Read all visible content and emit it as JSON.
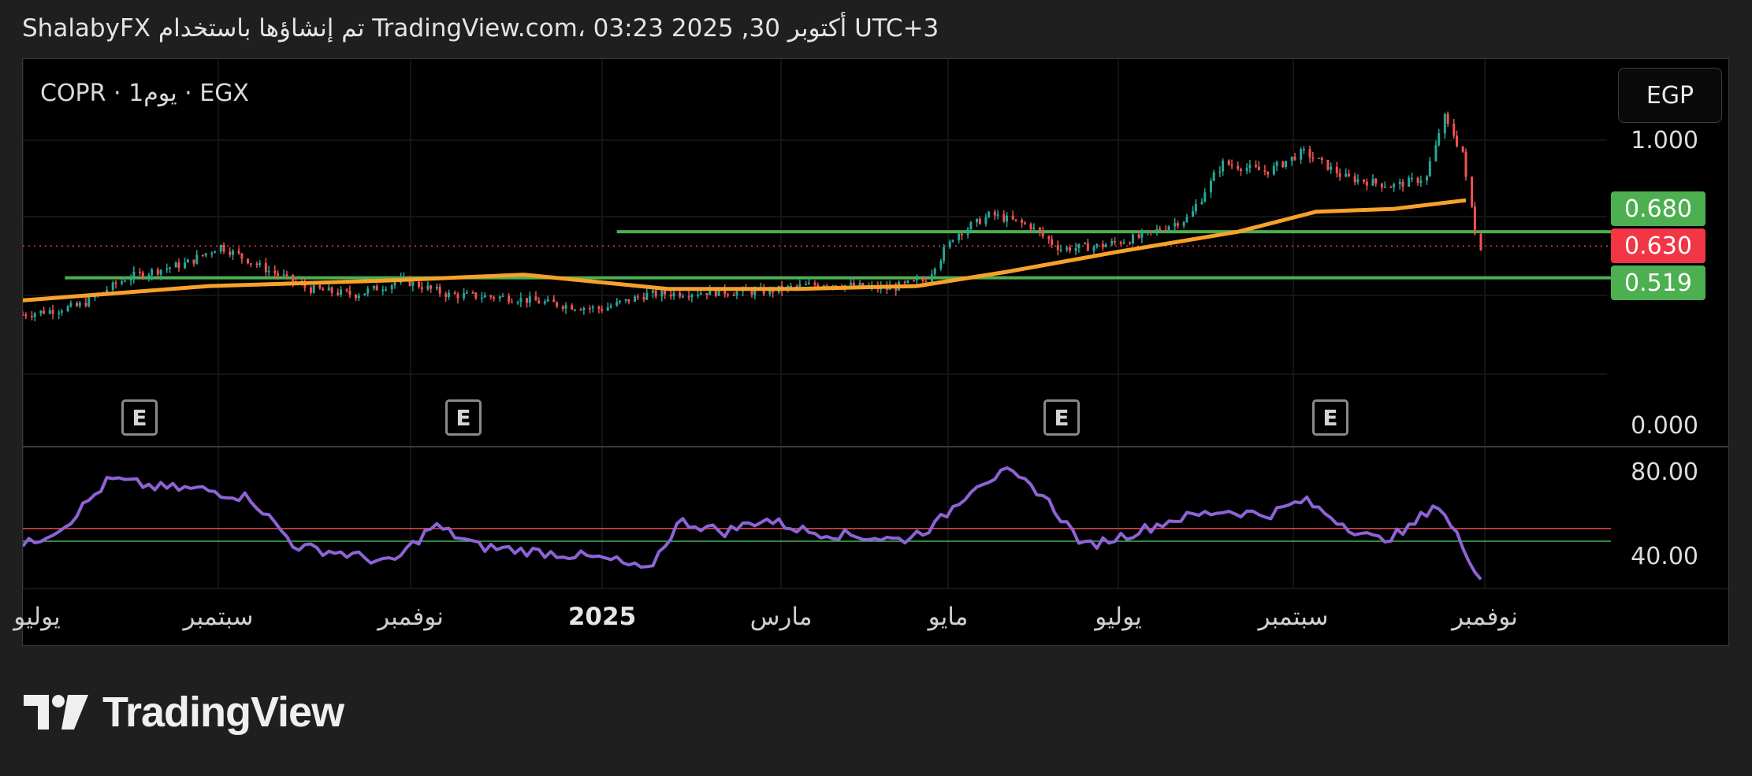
{
  "header": {
    "text": "ShalabyFX تم إنشاؤها باستخدام TradingView.com، 03:23 2025 ,30 أكتوبر UTC+3"
  },
  "symbol": "COPR · 1يوم · EGX",
  "currency": "EGP",
  "price_badges": [
    {
      "value": "0.680",
      "color": "#4caf50"
    },
    {
      "value": "0.630",
      "color": "#f23645"
    },
    {
      "value": "0.519",
      "color": "#4caf50"
    }
  ],
  "earnings_marker": "E",
  "brand": "TradingView",
  "colors": {
    "ma": "#f7a12a",
    "rsi": "#8e63d6",
    "up": "#26a69a",
    "down": "#ef5350",
    "hline": "#4caf50",
    "rsi_upper": "#e05050",
    "rsi_lower": "#4caf50"
  },
  "chart_data": [
    {
      "type": "candlestick",
      "title": "COPR · 1يوم · EGX",
      "ylim": [
        0.0,
        1.2
      ],
      "y_ticks": [
        "1.000",
        "0.000"
      ],
      "x_ticks": [
        "يوليو",
        "سبتمبر",
        "نوفمبر",
        "2025",
        "مارس",
        "مايو",
        "يوليو",
        "سبتمبر",
        "نوفمبر"
      ],
      "x_range": [
        "2024-07",
        "2025-12"
      ],
      "close_series": [
        [
          "2024-07-01",
          0.39
        ],
        [
          "2024-07-20",
          0.42
        ],
        [
          "2024-08-05",
          0.52
        ],
        [
          "2024-08-25",
          0.57
        ],
        [
          "2024-09-05",
          0.63
        ],
        [
          "2024-09-20",
          0.55
        ],
        [
          "2024-10-05",
          0.48
        ],
        [
          "2024-10-20",
          0.46
        ],
        [
          "2024-11-05",
          0.51
        ],
        [
          "2024-11-20",
          0.46
        ],
        [
          "2024-12-10",
          0.45
        ],
        [
          "2024-12-31",
          0.42
        ],
        [
          "2025-01-10",
          0.41
        ],
        [
          "2025-01-25",
          0.46
        ],
        [
          "2025-02-15",
          0.47
        ],
        [
          "2025-03-05",
          0.47
        ],
        [
          "2025-03-25",
          0.5
        ],
        [
          "2025-04-15",
          0.48
        ],
        [
          "2025-04-28",
          0.51
        ],
        [
          "2025-05-08",
          0.67
        ],
        [
          "2025-05-20",
          0.74
        ],
        [
          "2025-06-02",
          0.7
        ],
        [
          "2025-06-12",
          0.62
        ],
        [
          "2025-06-25",
          0.63
        ],
        [
          "2025-07-08",
          0.66
        ],
        [
          "2025-07-25",
          0.73
        ],
        [
          "2025-08-05",
          0.92
        ],
        [
          "2025-08-20",
          0.89
        ],
        [
          "2025-09-01",
          0.96
        ],
        [
          "2025-09-15",
          0.87
        ],
        [
          "2025-10-01",
          0.84
        ],
        [
          "2025-10-12",
          0.87
        ],
        [
          "2025-10-18",
          1.08
        ],
        [
          "2025-10-24",
          0.96
        ],
        [
          "2025-10-28",
          0.7
        ],
        [
          "2025-10-30",
          0.63
        ]
      ],
      "moving_average": [
        [
          "2024-07-01",
          0.44
        ],
        [
          "2024-09-01",
          0.49
        ],
        [
          "2024-11-01",
          0.51
        ],
        [
          "2024-12-15",
          0.53
        ],
        [
          "2025-02-01",
          0.48
        ],
        [
          "2025-03-15",
          0.48
        ],
        [
          "2025-04-25",
          0.49
        ],
        [
          "2025-05-25",
          0.54
        ],
        [
          "2025-07-01",
          0.61
        ],
        [
          "2025-08-10",
          0.68
        ],
        [
          "2025-09-05",
          0.75
        ],
        [
          "2025-10-01",
          0.76
        ],
        [
          "2025-10-25",
          0.79
        ]
      ],
      "horizontal_lines": [
        {
          "value": 0.68,
          "from": "2025-01-15"
        },
        {
          "value": 0.519,
          "from": "2024-07-15"
        }
      ],
      "last_price": 0.63,
      "earnings_dates": [
        "2024-08-10",
        "2024-11-05",
        "2025-06-20",
        "2025-09-05"
      ]
    },
    {
      "type": "line",
      "title": "RSI",
      "ylim": [
        25,
        90
      ],
      "y_ticks": [
        "80.00",
        "40.00"
      ],
      "reference_lines": [
        53.5,
        47.5
      ],
      "series": [
        {
          "name": "",
          "points": [
            [
              "2024-07-01",
              45
            ],
            [
              "2024-07-15",
              55
            ],
            [
              "2024-07-30",
              77
            ],
            [
              "2024-08-15",
              73
            ],
            [
              "2024-08-30",
              72
            ],
            [
              "2024-09-15",
              68
            ],
            [
              "2024-09-30",
              45
            ],
            [
              "2024-10-15",
              42
            ],
            [
              "2024-11-01",
              37
            ],
            [
              "2024-11-15",
              55
            ],
            [
              "2024-11-30",
              45
            ],
            [
              "2024-12-15",
              43
            ],
            [
              "2024-12-31",
              41
            ],
            [
              "2025-01-15",
              38
            ],
            [
              "2025-01-25",
              33
            ],
            [
              "2025-02-05",
              57
            ],
            [
              "2025-02-20",
              52
            ],
            [
              "2025-03-05",
              58
            ],
            [
              "2025-03-20",
              52
            ],
            [
              "2025-04-05",
              50
            ],
            [
              "2025-04-20",
              48
            ],
            [
              "2025-05-01",
              55
            ],
            [
              "2025-05-15",
              75
            ],
            [
              "2025-05-25",
              80
            ],
            [
              "2025-06-05",
              71
            ],
            [
              "2025-06-20",
              45
            ],
            [
              "2025-07-05",
              51
            ],
            [
              "2025-07-20",
              58
            ],
            [
              "2025-08-05",
              62
            ],
            [
              "2025-08-20",
              60
            ],
            [
              "2025-09-01",
              67
            ],
            [
              "2025-09-15",
              55
            ],
            [
              "2025-09-25",
              48
            ],
            [
              "2025-10-05",
              52
            ],
            [
              "2025-10-15",
              66
            ],
            [
              "2025-10-22",
              50
            ],
            [
              "2025-10-30",
              30
            ]
          ]
        }
      ]
    }
  ]
}
